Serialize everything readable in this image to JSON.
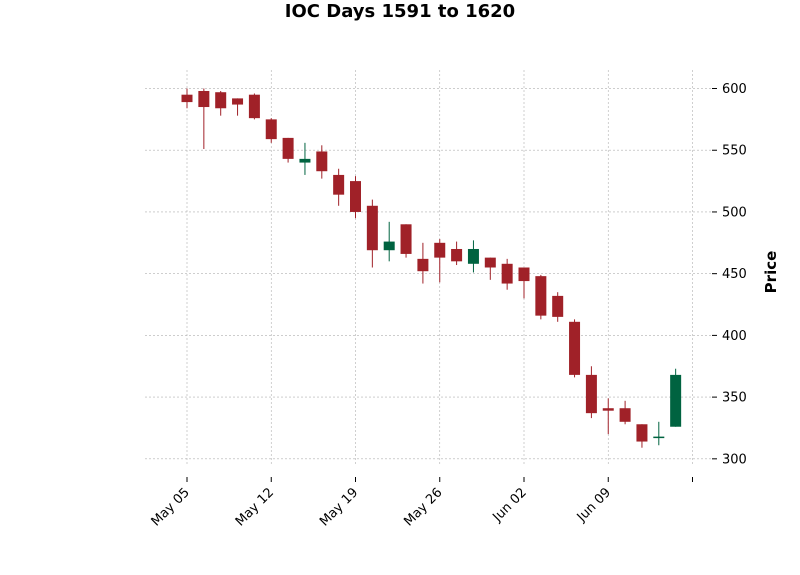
{
  "chart_data": {
    "type": "candlestick",
    "title": "IOC Days 1591 to 1620",
    "xlabel": "",
    "ylabel": "Price",
    "ylim": [
      295,
      615
    ],
    "yticks": [
      300,
      350,
      400,
      450,
      500,
      550,
      600
    ],
    "grid": true,
    "xticks": [
      {
        "label": "May 05",
        "index": 0
      },
      {
        "label": "May 12",
        "index": 5
      },
      {
        "label": "May 19",
        "index": 10
      },
      {
        "label": "May 26",
        "index": 15
      },
      {
        "label": "Jun 02",
        "index": 20
      },
      {
        "label": "Jun 09",
        "index": 25
      },
      {
        "label": "",
        "index": 30
      }
    ],
    "colors": {
      "up": "#006340",
      "down": "#a02128"
    },
    "candles": [
      {
        "open": 595,
        "high": 600,
        "low": 584,
        "close": 589
      },
      {
        "open": 598,
        "high": 600,
        "low": 551,
        "close": 585
      },
      {
        "open": 597,
        "high": 598,
        "low": 578,
        "close": 584
      },
      {
        "open": 592,
        "high": 592,
        "low": 578,
        "close": 587
      },
      {
        "open": 595,
        "high": 596,
        "low": 575,
        "close": 576
      },
      {
        "open": 575,
        "high": 576,
        "low": 556,
        "close": 559
      },
      {
        "open": 560,
        "high": 560,
        "low": 540,
        "close": 543
      },
      {
        "open": 540,
        "high": 556,
        "low": 530,
        "close": 543
      },
      {
        "open": 549,
        "high": 554,
        "low": 527,
        "close": 533
      },
      {
        "open": 530,
        "high": 535,
        "low": 505,
        "close": 514
      },
      {
        "open": 525,
        "high": 529,
        "low": 495,
        "close": 500
      },
      {
        "open": 505,
        "high": 510,
        "low": 455,
        "close": 469
      },
      {
        "open": 469,
        "high": 492,
        "low": 460,
        "close": 476
      },
      {
        "open": 490,
        "high": 490,
        "low": 463,
        "close": 466
      },
      {
        "open": 462,
        "high": 475,
        "low": 442,
        "close": 452
      },
      {
        "open": 475,
        "high": 478,
        "low": 443,
        "close": 463
      },
      {
        "open": 470,
        "high": 476,
        "low": 457,
        "close": 460
      },
      {
        "open": 458,
        "high": 477,
        "low": 451,
        "close": 470
      },
      {
        "open": 463,
        "high": 463,
        "low": 445,
        "close": 455
      },
      {
        "open": 458,
        "high": 462,
        "low": 437,
        "close": 442
      },
      {
        "open": 455,
        "high": 455,
        "low": 430,
        "close": 444
      },
      {
        "open": 448,
        "high": 449,
        "low": 413,
        "close": 416
      },
      {
        "open": 432,
        "high": 435,
        "low": 411,
        "close": 415
      },
      {
        "open": 411,
        "high": 413,
        "low": 366,
        "close": 368
      },
      {
        "open": 368,
        "high": 375,
        "low": 333,
        "close": 337
      },
      {
        "open": 341,
        "high": 349,
        "low": 320,
        "close": 339
      },
      {
        "open": 341,
        "high": 347,
        "low": 328,
        "close": 330
      },
      {
        "open": 328,
        "high": 328,
        "low": 309,
        "close": 314
      },
      {
        "open": 317,
        "high": 330,
        "low": 311,
        "close": 318
      },
      {
        "open": 326,
        "high": 373,
        "low": 326,
        "close": 368
      }
    ]
  }
}
